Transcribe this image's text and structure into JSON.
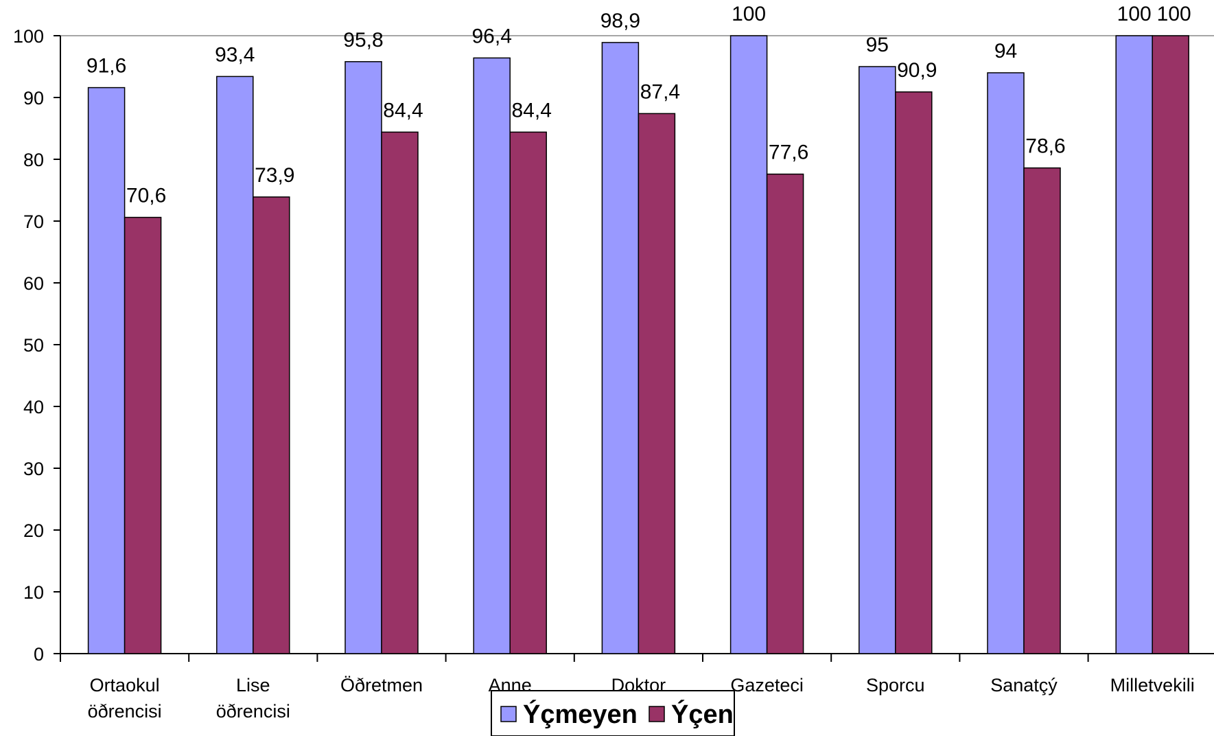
{
  "chart_data": {
    "type": "bar",
    "categories": [
      [
        "Ortaokul",
        "öðrencisi"
      ],
      [
        "Lise",
        "öðrencisi"
      ],
      [
        "Öðretmen"
      ],
      [
        "Anne"
      ],
      [
        "Doktor"
      ],
      [
        "Gazeteci"
      ],
      [
        "Sporcu"
      ],
      [
        "Sanatçý"
      ],
      [
        "Milletvekili"
      ]
    ],
    "series": [
      {
        "name": "Ýçmeyen",
        "color": "#9999ff",
        "values": [
          91.6,
          93.4,
          95.8,
          96.4,
          98.9,
          100,
          95,
          94,
          100
        ],
        "labels": [
          "91,6",
          "93,4",
          "95,8",
          "96,4",
          "98,9",
          "100",
          "95",
          "94",
          "100"
        ]
      },
      {
        "name": "Ýçen",
        "color": "#993366",
        "values": [
          70.6,
          73.9,
          84.4,
          84.4,
          87.4,
          77.6,
          90.9,
          78.6,
          100
        ],
        "labels": [
          "70,6",
          "73,9",
          "84,4",
          "84,4",
          "87,4",
          "77,6",
          "90,9",
          "78,6",
          "100"
        ]
      }
    ],
    "ylim": [
      0,
      100
    ],
    "yticks": [
      "0",
      "10",
      "20",
      "30",
      "40",
      "50",
      "60",
      "70",
      "80",
      "90",
      "100"
    ],
    "grid": true,
    "legend_position": "bottom-center"
  }
}
